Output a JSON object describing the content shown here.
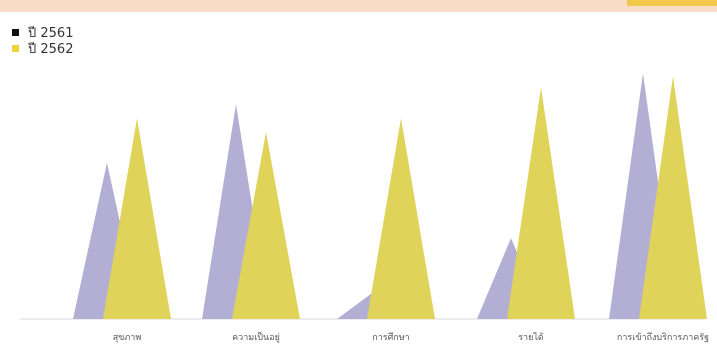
{
  "chart_data": {
    "type": "area",
    "style": "overlapping triangular peaks",
    "categories": [
      "สุขภาพ",
      "ความเป็นอยู่",
      "การศึกษา",
      "รายได้",
      "การเข้าถึงบริการภาครัฐ"
    ],
    "series": [
      {
        "name": "ปี 2561",
        "color": "#b3aed3",
        "legend_color": "#111111",
        "values": [
          56,
          77,
          9,
          29,
          88
        ]
      },
      {
        "name": "ปี 2562",
        "color": "#e0d35a",
        "legend_color": "#f0d23c",
        "values": [
          72,
          67,
          72,
          83,
          87
        ]
      }
    ],
    "ylim": [
      0,
      100
    ],
    "grid": false,
    "legend_position": "top-left",
    "title": "",
    "xlabel": "",
    "ylabel": ""
  }
}
